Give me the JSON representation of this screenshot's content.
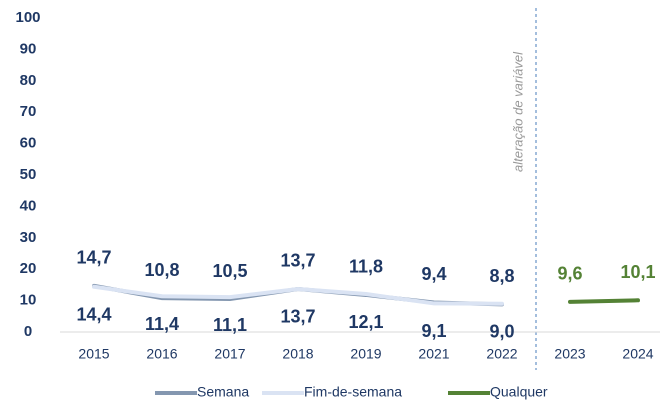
{
  "chart_data": {
    "type": "line",
    "categories": [
      "2015",
      "2016",
      "2017",
      "2018",
      "2019",
      "2021",
      "2022",
      "2023",
      "2024"
    ],
    "annotation": "alteração de variável",
    "series": [
      {
        "name": "Semana",
        "color": "#8497b0",
        "label_color": "#1f3864",
        "label_side": "above",
        "values": [
          14.7,
          10.8,
          10.5,
          13.7,
          11.8,
          9.4,
          8.8,
          null,
          null
        ],
        "value_labels": [
          "14,7",
          "10,8",
          "10,5",
          "13,7",
          "11,8",
          "9,4",
          "8,8",
          null,
          null
        ]
      },
      {
        "name": "Fim-de-semana",
        "color": "#dae3f3",
        "label_color": "#1f3864",
        "label_side": "below",
        "values": [
          14.4,
          11.4,
          11.1,
          13.7,
          12.1,
          9.1,
          9.0,
          null,
          null
        ],
        "value_labels": [
          "14,4",
          "11,4",
          "11,1",
          "13,7",
          "12,1",
          "9,1",
          "9,0",
          null,
          null
        ]
      },
      {
        "name": "Qualquer",
        "color": "#548235",
        "label_color": "#548235",
        "label_side": "above",
        "values": [
          null,
          null,
          null,
          null,
          null,
          null,
          null,
          9.6,
          10.1
        ],
        "value_labels": [
          null,
          null,
          null,
          null,
          null,
          null,
          null,
          "9,6",
          "10,1"
        ]
      }
    ],
    "ylim": [
      0,
      100
    ],
    "yticks": [
      0,
      10,
      20,
      30,
      40,
      50,
      60,
      70,
      80,
      90,
      100
    ],
    "grid": false
  }
}
